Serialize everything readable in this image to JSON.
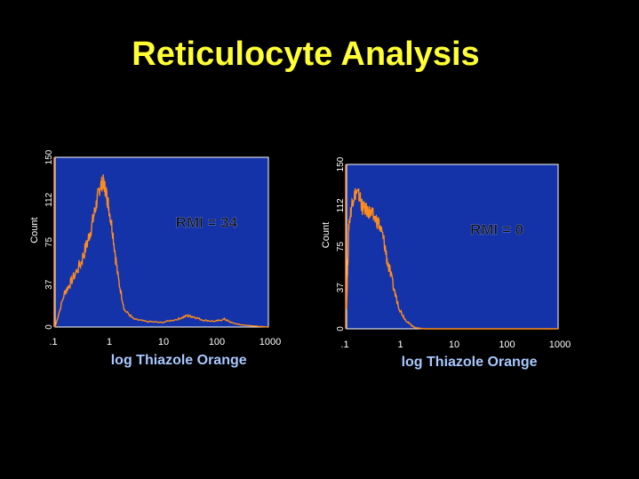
{
  "title": "Reticulocyte Analysis",
  "colors": {
    "background": "#000000",
    "title": "#ffff33",
    "plot_bg": "#1533a8",
    "histogram": "#ff8c1a",
    "xlabel": "#a8c8ff",
    "axis_text": "#ffffff"
  },
  "chart_data": [
    {
      "type": "area",
      "xlabel": "log Thiazole Orange",
      "ylabel": "Count",
      "x_scale": "log",
      "xlim": [
        0.1,
        1000
      ],
      "ylim": [
        0,
        150
      ],
      "xticks": [
        ".1",
        "1",
        "10",
        "100",
        "1000"
      ],
      "yticks": [
        "0",
        "37",
        "75",
        "112",
        "150"
      ],
      "annotation": "RMI = 34",
      "x": [
        0.1,
        0.15,
        0.2,
        0.3,
        0.4,
        0.5,
        0.6,
        0.7,
        0.8,
        0.9,
        1.0,
        1.2,
        1.5,
        2,
        3,
        5,
        10,
        20,
        30,
        40,
        60,
        100,
        150,
        200,
        300,
        500,
        1000
      ],
      "values": [
        0,
        30,
        40,
        56,
        74,
        92,
        110,
        125,
        128,
        120,
        108,
        85,
        45,
        15,
        7,
        5,
        4,
        7,
        10,
        9,
        6,
        5,
        7,
        4,
        2,
        1,
        0
      ]
    },
    {
      "type": "area",
      "xlabel": "log Thiazole Orange",
      "ylabel": "Count",
      "x_scale": "log",
      "xlim": [
        0.1,
        1000
      ],
      "ylim": [
        0,
        150
      ],
      "xticks": [
        ".1",
        "1",
        "10",
        "100",
        "1000"
      ],
      "yticks": [
        "0",
        "37",
        "75",
        "112",
        "150"
      ],
      "annotation": "RMI = 0",
      "x": [
        0.1,
        0.11,
        0.13,
        0.15,
        0.18,
        0.2,
        0.25,
        0.3,
        0.4,
        0.5,
        0.6,
        0.8,
        1.0,
        1.3,
        1.7,
        2,
        3,
        5,
        10,
        100,
        1000
      ],
      "values": [
        20,
        95,
        118,
        125,
        120,
        110,
        108,
        104,
        97,
        82,
        60,
        35,
        18,
        8,
        3,
        1,
        0,
        0,
        0,
        0,
        0
      ]
    }
  ]
}
